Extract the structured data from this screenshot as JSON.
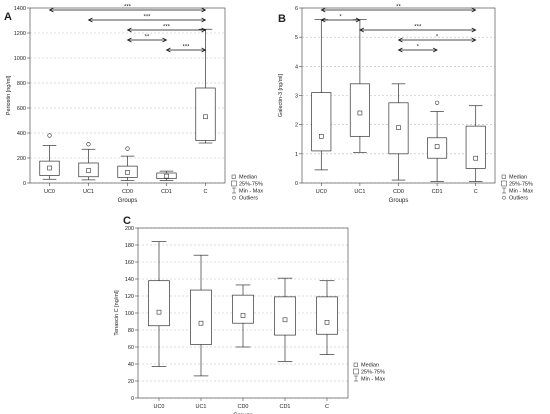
{
  "chart_data": [
    {
      "panel_label": "A",
      "type": "box",
      "xlabel": "Groups",
      "ylabel": "Periostin [ng/ml]",
      "ylim": [
        0,
        1400
      ],
      "yticks": [
        0,
        200,
        400,
        600,
        800,
        1000,
        1200,
        1400
      ],
      "grid": true,
      "categories": [
        "UC0",
        "UC1",
        "CD0",
        "CD1",
        "C"
      ],
      "boxes": [
        {
          "min": 30,
          "q1": 60,
          "median": 120,
          "q3": 175,
          "max": 300
        },
        {
          "min": 25,
          "q1": 50,
          "median": 100,
          "q3": 160,
          "max": 270
        },
        {
          "min": 20,
          "q1": 45,
          "median": 85,
          "q3": 135,
          "max": 215
        },
        {
          "min": 20,
          "q1": 35,
          "median": 55,
          "q3": 80,
          "max": 95
        },
        {
          "min": 320,
          "q1": 340,
          "median": 530,
          "q3": 760,
          "max": 1230
        }
      ],
      "outliers": [
        {
          "category": "UC0",
          "value": 380
        },
        {
          "category": "UC1",
          "value": 310
        },
        {
          "category": "CD0",
          "value": 275
        }
      ],
      "significance": [
        {
          "from": "UC0",
          "to": "C",
          "label": "***"
        },
        {
          "from": "UC1",
          "to": "C",
          "label": "***"
        },
        {
          "from": "CD0",
          "to": "C",
          "label": "***"
        },
        {
          "from": "CD0",
          "to": "CD1",
          "label": "**"
        },
        {
          "from": "CD1",
          "to": "C",
          "label": "***"
        }
      ],
      "legend": [
        "Median",
        "25%-75%",
        "Min - Max",
        "Outliers"
      ],
      "legend_position": "bottom-right"
    },
    {
      "panel_label": "B",
      "type": "box",
      "xlabel": "Groups",
      "ylabel": "Galectin-3 [ng/ml]",
      "ylim": [
        0,
        6
      ],
      "yticks": [
        0,
        1,
        2,
        3,
        4,
        5,
        6
      ],
      "grid": true,
      "categories": [
        "UC0",
        "UC1",
        "CD0",
        "CD1",
        "C"
      ],
      "boxes": [
        {
          "min": 0.45,
          "q1": 1.1,
          "median": 1.6,
          "q3": 3.1,
          "max": 5.6
        },
        {
          "min": 1.05,
          "q1": 1.6,
          "median": 2.4,
          "q3": 3.4,
          "max": 5.6
        },
        {
          "min": 0.1,
          "q1": 1.0,
          "median": 1.9,
          "q3": 2.75,
          "max": 3.4
        },
        {
          "min": 0.05,
          "q1": 0.85,
          "median": 1.25,
          "q3": 1.55,
          "max": 2.45
        },
        {
          "min": 0.05,
          "q1": 0.5,
          "median": 0.85,
          "q3": 1.95,
          "max": 2.65
        }
      ],
      "outliers": [
        {
          "category": "CD1",
          "value": 2.75
        }
      ],
      "significance": [
        {
          "from": "UC0",
          "to": "C",
          "label": "**"
        },
        {
          "from": "UC0",
          "to": "UC1",
          "label": "*"
        },
        {
          "from": "UC1",
          "to": "C",
          "label": "***"
        },
        {
          "from": "CD0",
          "to": "C",
          "label": "*"
        },
        {
          "from": "CD0",
          "to": "CD1",
          "label": "*"
        }
      ],
      "legend": [
        "Median",
        "25%-75%",
        "Min - Max",
        "Outliers"
      ],
      "legend_position": "bottom-right"
    },
    {
      "panel_label": "C",
      "type": "box",
      "xlabel": "Groups",
      "ylabel": "Tenascin C [ng/ml]",
      "ylim": [
        0,
        200
      ],
      "yticks": [
        0,
        20,
        40,
        60,
        80,
        100,
        120,
        140,
        160,
        180,
        200
      ],
      "grid": true,
      "categories": [
        "UC0",
        "UC1",
        "CD0",
        "CD1",
        "C"
      ],
      "boxes": [
        {
          "min": 37,
          "q1": 85,
          "median": 101,
          "q3": 138,
          "max": 184
        },
        {
          "min": 26,
          "q1": 63,
          "median": 88,
          "q3": 127,
          "max": 168
        },
        {
          "min": 60,
          "q1": 88,
          "median": 97,
          "q3": 121,
          "max": 133
        },
        {
          "min": 43,
          "q1": 74,
          "median": 92,
          "q3": 119,
          "max": 141
        },
        {
          "min": 51,
          "q1": 75,
          "median": 89,
          "q3": 119,
          "max": 138
        }
      ],
      "outliers": [],
      "significance": [],
      "legend": [
        "Median",
        "25%-75%",
        "Min - Max"
      ],
      "legend_position": "bottom-right"
    }
  ]
}
